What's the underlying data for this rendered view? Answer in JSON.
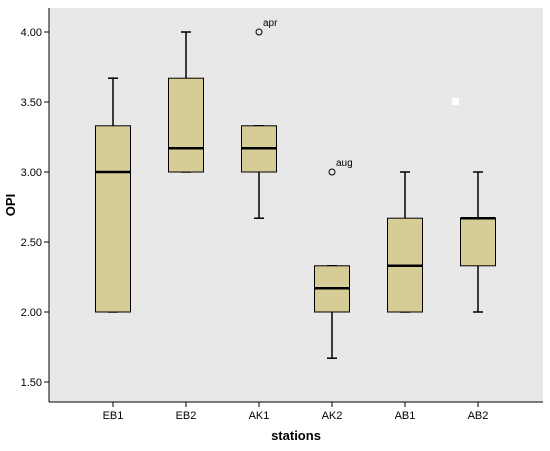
{
  "chart_data": {
    "type": "boxplot",
    "title": "",
    "xlabel": "stations",
    "ylabel": "OPI",
    "ylim": [
      1.4,
      4.2
    ],
    "yticks": [
      "1.50",
      "2.00",
      "2.50",
      "3.00",
      "3.50",
      "4.00"
    ],
    "grid": false,
    "colors": {
      "plot_bg": "#e8e8e8",
      "box_fill": "#d6cc96",
      "stroke": "#000000"
    },
    "categories": [
      "EB1",
      "EB2",
      "AK1",
      "AK2",
      "AB1",
      "AB2"
    ],
    "boxes": [
      {
        "category": "EB1",
        "whisker_low": 2.0,
        "q1": 2.0,
        "median": 3.0,
        "q3": 3.33,
        "whisker_high": 3.67
      },
      {
        "category": "EB2",
        "whisker_low": 3.0,
        "q1": 3.0,
        "median": 3.17,
        "q3": 3.67,
        "whisker_high": 4.0
      },
      {
        "category": "AK1",
        "whisker_low": 2.67,
        "q1": 3.0,
        "median": 3.17,
        "q3": 3.33,
        "whisker_high": 3.33
      },
      {
        "category": "AK2",
        "whisker_low": 1.67,
        "q1": 2.0,
        "median": 2.17,
        "q3": 2.33,
        "whisker_high": 2.33
      },
      {
        "category": "AB1",
        "whisker_low": 2.0,
        "q1": 2.0,
        "median": 2.33,
        "q3": 2.67,
        "whisker_high": 3.0
      },
      {
        "category": "AB2",
        "whisker_low": 2.0,
        "q1": 2.33,
        "median": 2.67,
        "q3": 2.67,
        "whisker_high": 3.0
      }
    ],
    "outliers": [
      {
        "category": "AK1",
        "value": 4.0,
        "label": "apr"
      },
      {
        "category": "AK2",
        "value": 3.0,
        "label": "aug"
      }
    ]
  }
}
